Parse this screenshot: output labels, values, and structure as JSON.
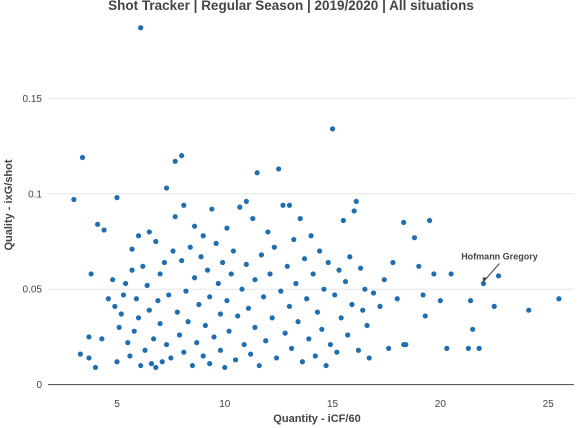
{
  "chart_data": {
    "type": "scatter",
    "title": "Shot Tracker | Regular Season | 2019/2020 | All situations",
    "xlabel": "Quantity - iCF/60",
    "ylabel": "Quality - ixG/shot",
    "xlim": [
      1.8,
      26.2
    ],
    "ylim": [
      -0.007,
      0.19
    ],
    "x_ticks": [
      5,
      10,
      15,
      20,
      25
    ],
    "y_ticks": [
      0,
      0.05,
      0.1,
      0.15
    ],
    "x_tick_labels": [
      "5",
      "10",
      "15",
      "20",
      "25"
    ],
    "y_tick_labels": [
      "0",
      "0.05",
      "0.1",
      "0.15"
    ],
    "grid": "horizontal",
    "color": "#1f6eb0",
    "annotation": {
      "text": "Hofmann Gregory",
      "x": 22.0,
      "y": 0.053
    },
    "points": [
      {
        "x": 6.1,
        "y": 0.187
      },
      {
        "x": 3.0,
        "y": 0.097
      },
      {
        "x": 3.4,
        "y": 0.119
      },
      {
        "x": 3.3,
        "y": 0.016
      },
      {
        "x": 3.7,
        "y": 0.025
      },
      {
        "x": 3.8,
        "y": 0.058
      },
      {
        "x": 3.7,
        "y": 0.014
      },
      {
        "x": 4.0,
        "y": 0.009
      },
      {
        "x": 4.1,
        "y": 0.084
      },
      {
        "x": 4.3,
        "y": 0.024
      },
      {
        "x": 4.4,
        "y": 0.081
      },
      {
        "x": 4.6,
        "y": 0.045
      },
      {
        "x": 4.8,
        "y": 0.055
      },
      {
        "x": 4.9,
        "y": 0.041
      },
      {
        "x": 5.0,
        "y": 0.098
      },
      {
        "x": 5.0,
        "y": 0.012
      },
      {
        "x": 5.1,
        "y": 0.03
      },
      {
        "x": 5.2,
        "y": 0.037
      },
      {
        "x": 5.3,
        "y": 0.047
      },
      {
        "x": 5.4,
        "y": 0.053
      },
      {
        "x": 5.5,
        "y": 0.022
      },
      {
        "x": 5.6,
        "y": 0.015
      },
      {
        "x": 5.7,
        "y": 0.06
      },
      {
        "x": 5.7,
        "y": 0.071
      },
      {
        "x": 5.8,
        "y": 0.028
      },
      {
        "x": 5.9,
        "y": 0.045
      },
      {
        "x": 6.0,
        "y": 0.078
      },
      {
        "x": 6.0,
        "y": 0.035
      },
      {
        "x": 6.1,
        "y": 0.01
      },
      {
        "x": 6.2,
        "y": 0.062
      },
      {
        "x": 6.3,
        "y": 0.018
      },
      {
        "x": 6.4,
        "y": 0.052
      },
      {
        "x": 6.5,
        "y": 0.08
      },
      {
        "x": 6.5,
        "y": 0.039
      },
      {
        "x": 6.6,
        "y": 0.011
      },
      {
        "x": 6.7,
        "y": 0.024
      },
      {
        "x": 6.8,
        "y": 0.075
      },
      {
        "x": 6.8,
        "y": 0.009
      },
      {
        "x": 6.9,
        "y": 0.044
      },
      {
        "x": 7.0,
        "y": 0.032
      },
      {
        "x": 7.0,
        "y": 0.058
      },
      {
        "x": 7.1,
        "y": 0.012
      },
      {
        "x": 7.2,
        "y": 0.064
      },
      {
        "x": 7.3,
        "y": 0.103
      },
      {
        "x": 7.3,
        "y": 0.021
      },
      {
        "x": 7.4,
        "y": 0.047
      },
      {
        "x": 7.5,
        "y": 0.014
      },
      {
        "x": 7.6,
        "y": 0.07
      },
      {
        "x": 7.7,
        "y": 0.088
      },
      {
        "x": 7.7,
        "y": 0.117
      },
      {
        "x": 7.8,
        "y": 0.038
      },
      {
        "x": 7.9,
        "y": 0.026
      },
      {
        "x": 8.0,
        "y": 0.12
      },
      {
        "x": 8.0,
        "y": 0.065
      },
      {
        "x": 8.1,
        "y": 0.094
      },
      {
        "x": 8.1,
        "y": 0.017
      },
      {
        "x": 8.2,
        "y": 0.049
      },
      {
        "x": 8.3,
        "y": 0.033
      },
      {
        "x": 8.4,
        "y": 0.072
      },
      {
        "x": 8.5,
        "y": 0.01
      },
      {
        "x": 8.6,
        "y": 0.056
      },
      {
        "x": 8.6,
        "y": 0.083
      },
      {
        "x": 8.7,
        "y": 0.022
      },
      {
        "x": 8.8,
        "y": 0.042
      },
      {
        "x": 8.9,
        "y": 0.067
      },
      {
        "x": 9.0,
        "y": 0.015
      },
      {
        "x": 9.0,
        "y": 0.078
      },
      {
        "x": 9.1,
        "y": 0.031
      },
      {
        "x": 9.2,
        "y": 0.06
      },
      {
        "x": 9.3,
        "y": 0.046
      },
      {
        "x": 9.3,
        "y": 0.011
      },
      {
        "x": 9.4,
        "y": 0.092
      },
      {
        "x": 9.5,
        "y": 0.025
      },
      {
        "x": 9.6,
        "y": 0.074
      },
      {
        "x": 9.7,
        "y": 0.053
      },
      {
        "x": 9.8,
        "y": 0.037
      },
      {
        "x": 9.8,
        "y": 0.018
      },
      {
        "x": 9.9,
        "y": 0.064
      },
      {
        "x": 10.0,
        "y": 0.009
      },
      {
        "x": 10.1,
        "y": 0.082
      },
      {
        "x": 10.1,
        "y": 0.044
      },
      {
        "x": 10.2,
        "y": 0.028
      },
      {
        "x": 10.3,
        "y": 0.058
      },
      {
        "x": 10.4,
        "y": 0.07
      },
      {
        "x": 10.5,
        "y": 0.013
      },
      {
        "x": 10.6,
        "y": 0.036
      },
      {
        "x": 10.7,
        "y": 0.093
      },
      {
        "x": 10.8,
        "y": 0.05
      },
      {
        "x": 10.9,
        "y": 0.021
      },
      {
        "x": 11.0,
        "y": 0.063
      },
      {
        "x": 11.0,
        "y": 0.096
      },
      {
        "x": 11.1,
        "y": 0.04
      },
      {
        "x": 11.2,
        "y": 0.016
      },
      {
        "x": 11.3,
        "y": 0.087
      },
      {
        "x": 11.4,
        "y": 0.055
      },
      {
        "x": 11.4,
        "y": 0.03
      },
      {
        "x": 11.5,
        "y": 0.111
      },
      {
        "x": 11.6,
        "y": 0.01
      },
      {
        "x": 11.7,
        "y": 0.068
      },
      {
        "x": 11.8,
        "y": 0.046
      },
      {
        "x": 11.9,
        "y": 0.023
      },
      {
        "x": 12.0,
        "y": 0.08
      },
      {
        "x": 12.1,
        "y": 0.058
      },
      {
        "x": 12.2,
        "y": 0.035
      },
      {
        "x": 12.3,
        "y": 0.072
      },
      {
        "x": 12.4,
        "y": 0.014
      },
      {
        "x": 12.5,
        "y": 0.113
      },
      {
        "x": 12.6,
        "y": 0.049
      },
      {
        "x": 12.7,
        "y": 0.094
      },
      {
        "x": 12.8,
        "y": 0.027
      },
      {
        "x": 12.9,
        "y": 0.062
      },
      {
        "x": 13.0,
        "y": 0.041
      },
      {
        "x": 13.0,
        "y": 0.094
      },
      {
        "x": 13.1,
        "y": 0.019
      },
      {
        "x": 13.2,
        "y": 0.076
      },
      {
        "x": 13.3,
        "y": 0.053
      },
      {
        "x": 13.4,
        "y": 0.033
      },
      {
        "x": 13.5,
        "y": 0.087
      },
      {
        "x": 13.6,
        "y": 0.012
      },
      {
        "x": 13.7,
        "y": 0.066
      },
      {
        "x": 13.8,
        "y": 0.045
      },
      {
        "x": 13.9,
        "y": 0.024
      },
      {
        "x": 14.0,
        "y": 0.078
      },
      {
        "x": 14.1,
        "y": 0.058
      },
      {
        "x": 14.2,
        "y": 0.015
      },
      {
        "x": 14.3,
        "y": 0.038
      },
      {
        "x": 14.4,
        "y": 0.07
      },
      {
        "x": 14.5,
        "y": 0.029
      },
      {
        "x": 14.6,
        "y": 0.05
      },
      {
        "x": 14.7,
        "y": 0.01
      },
      {
        "x": 14.8,
        "y": 0.064
      },
      {
        "x": 14.9,
        "y": 0.021
      },
      {
        "x": 15.0,
        "y": 0.134
      },
      {
        "x": 15.1,
        "y": 0.047
      },
      {
        "x": 15.2,
        "y": 0.017
      },
      {
        "x": 15.3,
        "y": 0.06
      },
      {
        "x": 15.4,
        "y": 0.035
      },
      {
        "x": 15.5,
        "y": 0.086
      },
      {
        "x": 15.6,
        "y": 0.054
      },
      {
        "x": 15.7,
        "y": 0.026
      },
      {
        "x": 15.8,
        "y": 0.067
      },
      {
        "x": 15.9,
        "y": 0.042
      },
      {
        "x": 16.0,
        "y": 0.091
      },
      {
        "x": 16.1,
        "y": 0.096
      },
      {
        "x": 16.2,
        "y": 0.018
      },
      {
        "x": 16.3,
        "y": 0.061
      },
      {
        "x": 16.4,
        "y": 0.039
      },
      {
        "x": 16.5,
        "y": 0.05
      },
      {
        "x": 16.6,
        "y": 0.031
      },
      {
        "x": 16.7,
        "y": 0.014
      },
      {
        "x": 16.9,
        "y": 0.048
      },
      {
        "x": 17.2,
        "y": 0.041
      },
      {
        "x": 17.4,
        "y": 0.055
      },
      {
        "x": 17.6,
        "y": 0.019
      },
      {
        "x": 17.8,
        "y": 0.064
      },
      {
        "x": 18.0,
        "y": 0.045
      },
      {
        "x": 18.3,
        "y": 0.085
      },
      {
        "x": 18.3,
        "y": 0.021
      },
      {
        "x": 18.4,
        "y": 0.021
      },
      {
        "x": 18.8,
        "y": 0.077
      },
      {
        "x": 19.0,
        "y": 0.062
      },
      {
        "x": 19.2,
        "y": 0.047
      },
      {
        "x": 19.3,
        "y": 0.036
      },
      {
        "x": 19.5,
        "y": 0.086
      },
      {
        "x": 19.7,
        "y": 0.058
      },
      {
        "x": 20.0,
        "y": 0.044
      },
      {
        "x": 20.3,
        "y": 0.019
      },
      {
        "x": 20.5,
        "y": 0.058
      },
      {
        "x": 21.3,
        "y": 0.019
      },
      {
        "x": 21.4,
        "y": 0.044
      },
      {
        "x": 21.5,
        "y": 0.029
      },
      {
        "x": 21.8,
        "y": 0.019
      },
      {
        "x": 22.0,
        "y": 0.053
      },
      {
        "x": 22.5,
        "y": 0.041
      },
      {
        "x": 22.7,
        "y": 0.057
      },
      {
        "x": 24.1,
        "y": 0.039
      },
      {
        "x": 25.5,
        "y": 0.045
      }
    ]
  }
}
